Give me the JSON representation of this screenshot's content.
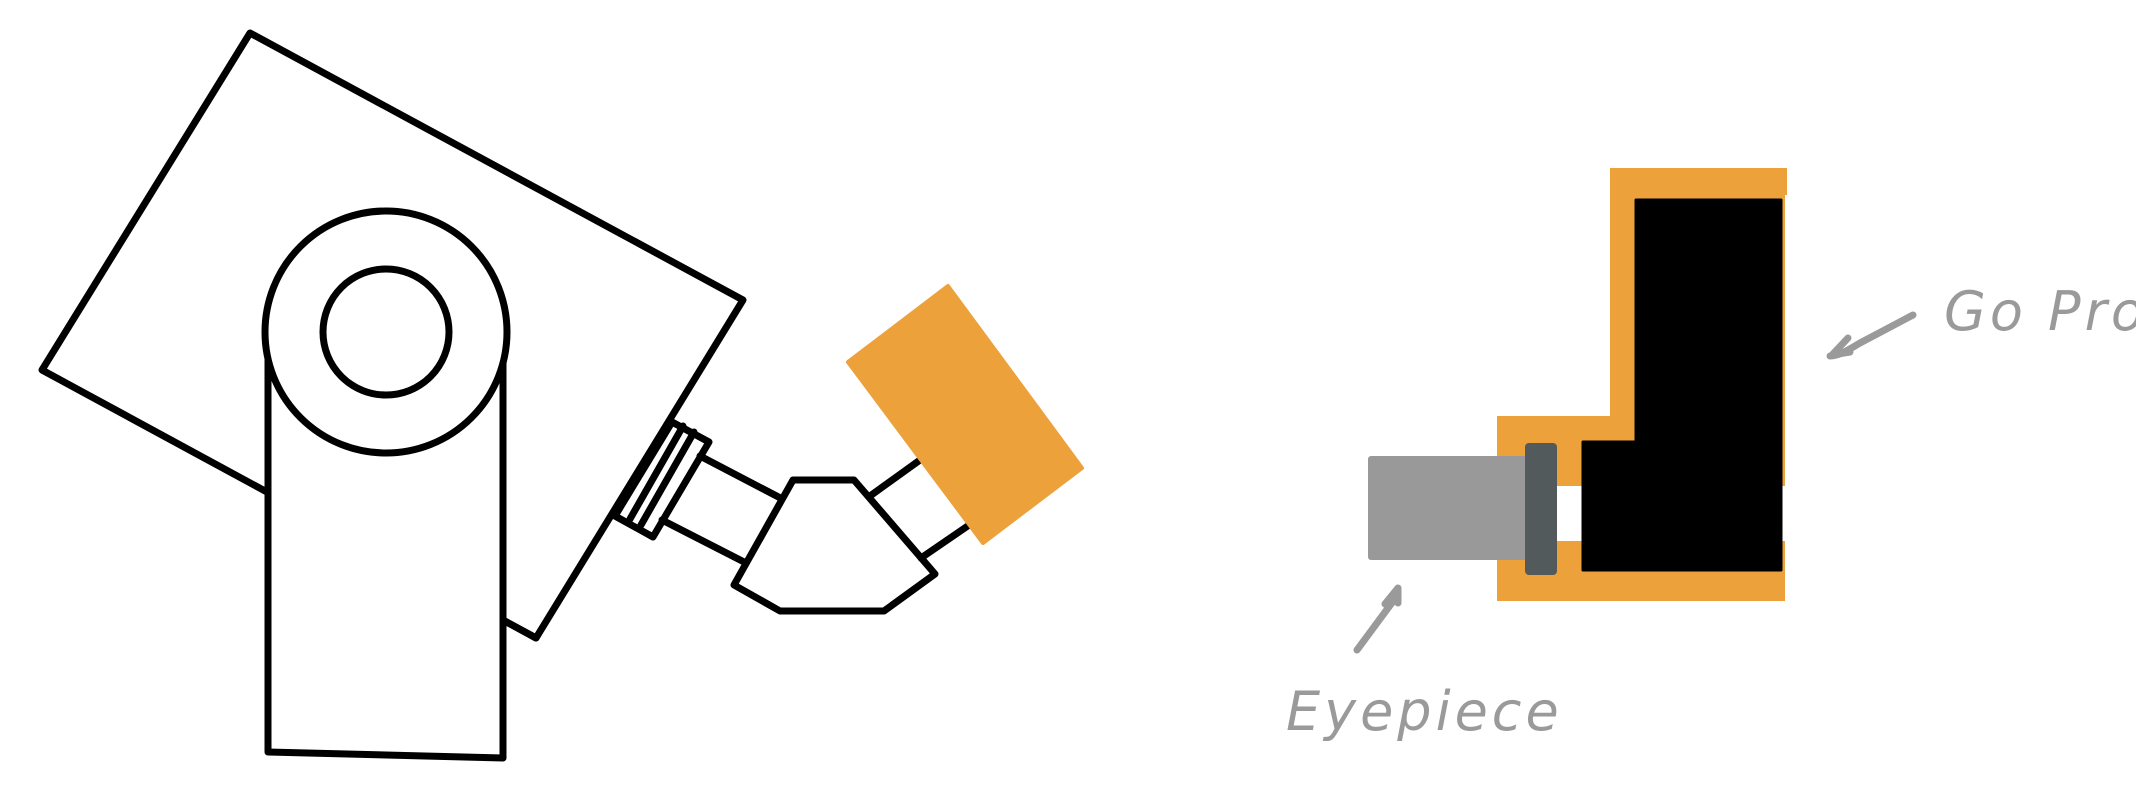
{
  "labels": {
    "gopro": "Go Pro",
    "eyepiece": "Eyepiece"
  },
  "colors": {
    "outline": "#000000",
    "accent": "#eca13b",
    "eyepiece": "#999999",
    "eyepiece_ring": "#535a5c",
    "annotation": "#9a9a9a",
    "background": "#ffffff"
  }
}
